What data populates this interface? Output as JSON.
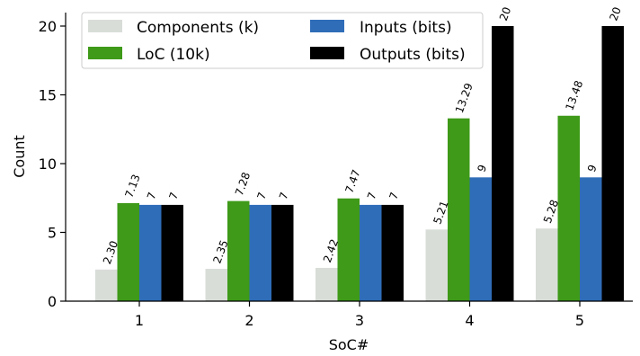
{
  "chart_data": {
    "type": "bar",
    "categories": [
      "1",
      "2",
      "3",
      "4",
      "5"
    ],
    "series": [
      {
        "name": "Components (k)",
        "values": [
          2.3,
          2.35,
          2.42,
          5.21,
          5.28
        ],
        "labels": [
          "2.30",
          "2.35",
          "2.42",
          "5.21",
          "5.28"
        ],
        "color": "#d8ddd8"
      },
      {
        "name": "LoC (10k)",
        "values": [
          7.13,
          7.28,
          7.47,
          13.29,
          13.48
        ],
        "labels": [
          "7.13",
          "7.28",
          "7.47",
          "13.29",
          "13.48"
        ],
        "color": "#3e9a18"
      },
      {
        "name": "Inputs (bits)",
        "values": [
          7,
          7,
          7,
          9,
          9
        ],
        "labels": [
          "7",
          "7",
          "7",
          "9",
          "9"
        ],
        "color": "#2f6db8"
      },
      {
        "name": "Outputs (bits)",
        "values": [
          7,
          7,
          7,
          20,
          20
        ],
        "labels": [
          "7",
          "7",
          "7",
          "20",
          "20"
        ],
        "color": "#000000"
      }
    ],
    "xlabel": "SoC#",
    "ylabel": "Count",
    "ylim": [
      0,
      21
    ],
    "yticks": [
      0,
      5,
      10,
      15,
      20
    ],
    "grid": false,
    "legend_position": "top-left"
  }
}
